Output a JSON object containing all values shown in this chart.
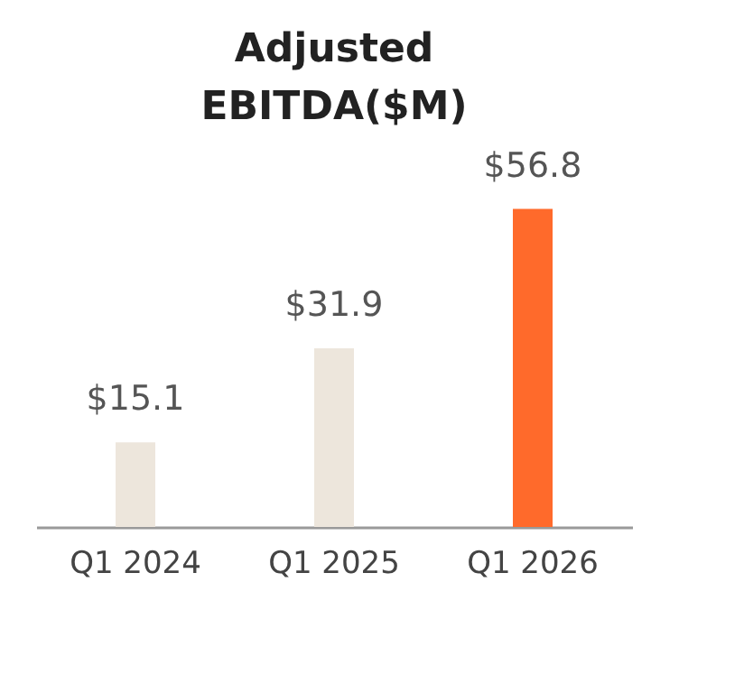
{
  "chart_data": {
    "type": "bar",
    "title": "Adjusted EBITDA($M)",
    "categories": [
      "Q1 2024",
      "Q1 2025",
      "Q1 2026"
    ],
    "values": [
      15.1,
      31.9,
      56.8
    ],
    "colors": [
      "#ede6dc",
      "#ede6dc",
      "#ff6a2b"
    ],
    "value_labels": [
      "$15.1",
      "$31.9",
      "$56.8"
    ],
    "grid": false
  }
}
